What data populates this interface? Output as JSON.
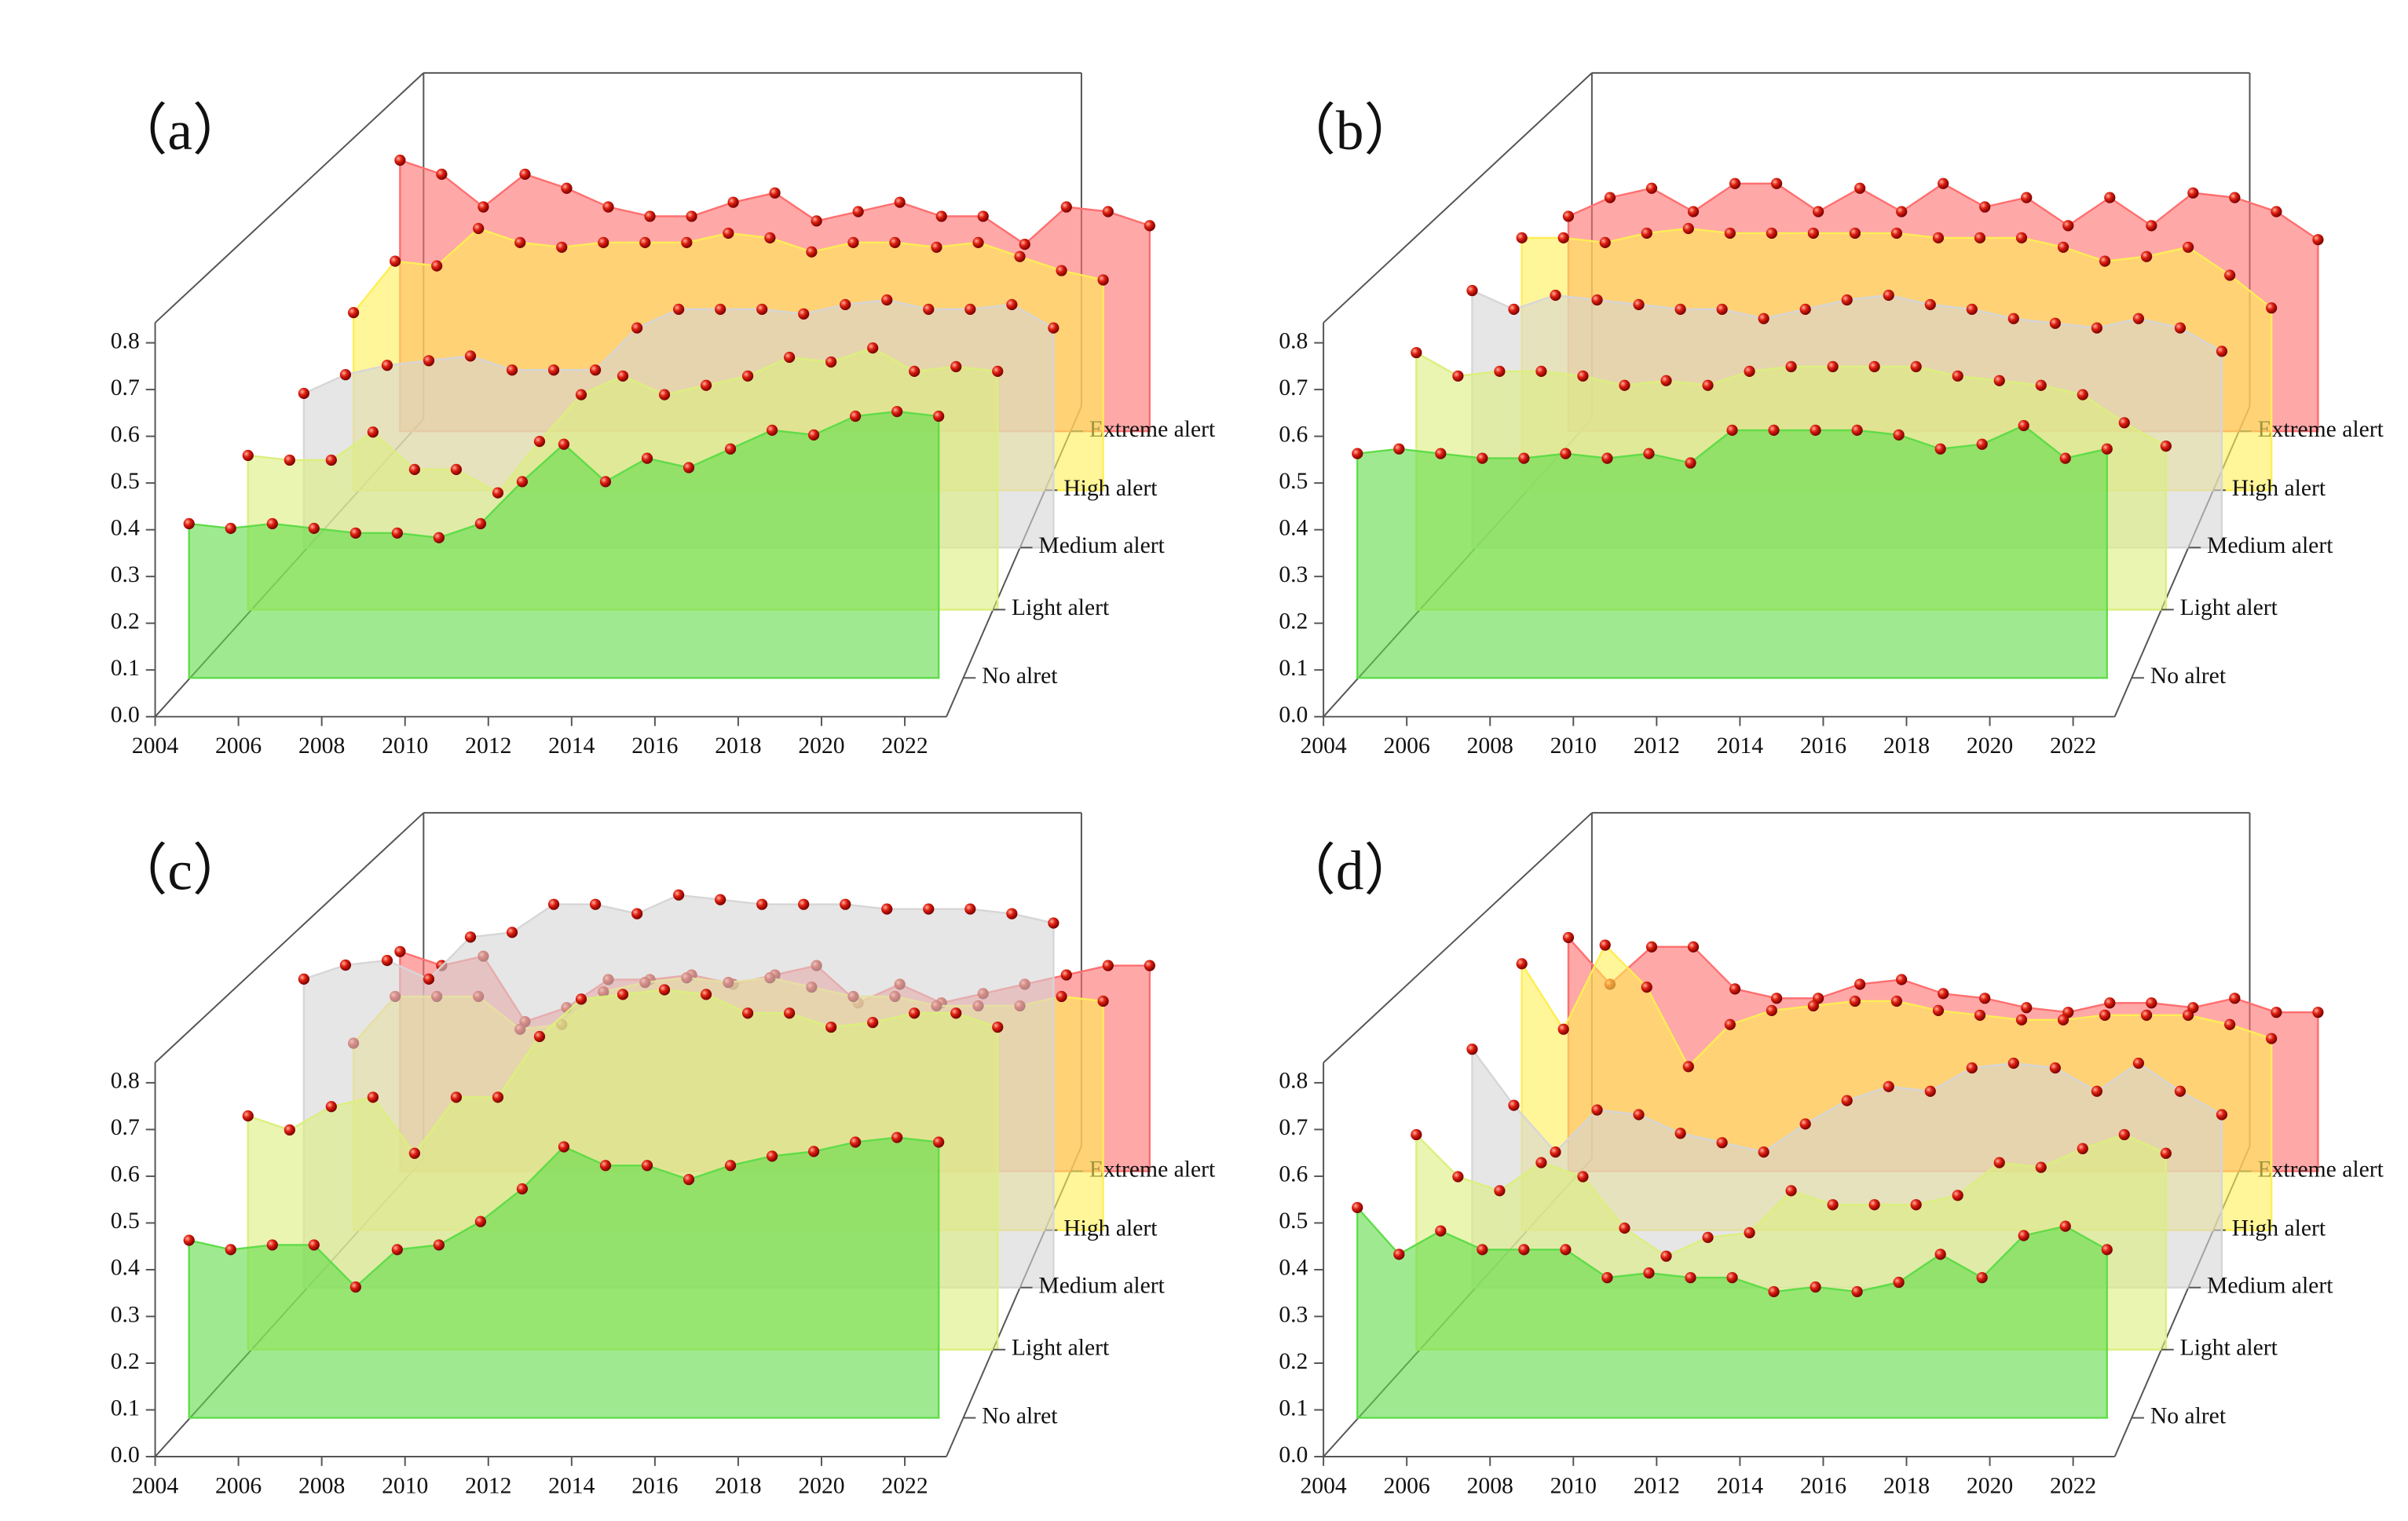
{
  "chart_data": [
    {
      "type": "area",
      "title": "（a）",
      "x": [
        2005,
        2006,
        2007,
        2008,
        2009,
        2010,
        2011,
        2012,
        2013,
        2014,
        2015,
        2016,
        2017,
        2018,
        2019,
        2020,
        2021,
        2022,
        2023
      ],
      "xlim": [
        2004,
        2023
      ],
      "xticks": [
        2004,
        2006,
        2008,
        2010,
        2012,
        2014,
        2016,
        2018,
        2020,
        2022
      ],
      "ylim": [
        0,
        0.8
      ],
      "yticks": [
        {
          "value": 0,
          "label": "0.0"
        },
        {
          "value": 0.1,
          "label": "0.1"
        },
        {
          "value": 0.2,
          "label": "0.2"
        },
        {
          "value": 0.3,
          "label": "0.3"
        },
        {
          "value": 0.4,
          "label": "0.4"
        },
        {
          "value": 0.5,
          "label": "0.5"
        },
        {
          "value": 0.6,
          "label": "0.6"
        },
        {
          "value": 0.7,
          "label": "0.7"
        },
        {
          "value": 0.8,
          "label": "0.8"
        }
      ],
      "series": [
        {
          "name": "No alret",
          "color": "#5fdc48",
          "values": [
            0.33,
            0.32,
            0.33,
            0.32,
            0.31,
            0.31,
            0.3,
            0.33,
            0.42,
            0.5,
            0.42,
            0.47,
            0.45,
            0.49,
            0.53,
            0.52,
            0.56,
            0.57,
            0.56
          ]
        },
        {
          "name": "Light alert",
          "color": "#dcef7e",
          "values": [
            0.33,
            0.32,
            0.32,
            0.38,
            0.3,
            0.3,
            0.25,
            0.36,
            0.46,
            0.5,
            0.46,
            0.48,
            0.5,
            0.54,
            0.53,
            0.56,
            0.51,
            0.52,
            0.51
          ]
        },
        {
          "name": "Medium alert",
          "color": "#d6d6d6",
          "values": [
            0.33,
            0.37,
            0.39,
            0.4,
            0.41,
            0.38,
            0.38,
            0.38,
            0.47,
            0.51,
            0.51,
            0.51,
            0.5,
            0.52,
            0.53,
            0.51,
            0.51,
            0.52,
            0.47
          ]
        },
        {
          "name": "High alert",
          "color": "#ffee55",
          "values": [
            0.38,
            0.49,
            0.48,
            0.56,
            0.53,
            0.52,
            0.53,
            0.53,
            0.53,
            0.55,
            0.54,
            0.51,
            0.53,
            0.53,
            0.52,
            0.53,
            0.5,
            0.47,
            0.45
          ]
        },
        {
          "name": "Extreme alert",
          "color": "#ff6e6e",
          "values": [
            0.58,
            0.55,
            0.48,
            0.55,
            0.52,
            0.48,
            0.46,
            0.46,
            0.49,
            0.51,
            0.45,
            0.47,
            0.49,
            0.46,
            0.46,
            0.4,
            0.48,
            0.47,
            0.44
          ]
        }
      ]
    },
    {
      "type": "area",
      "title": "（b）",
      "x": [
        2005,
        2006,
        2007,
        2008,
        2009,
        2010,
        2011,
        2012,
        2013,
        2014,
        2015,
        2016,
        2017,
        2018,
        2019,
        2020,
        2021,
        2022,
        2023
      ],
      "xlim": [
        2004,
        2023
      ],
      "xticks": [
        2004,
        2006,
        2008,
        2010,
        2012,
        2014,
        2016,
        2018,
        2020,
        2022
      ],
      "ylim": [
        0,
        0.8
      ],
      "yticks": [
        {
          "value": 0,
          "label": "0.0"
        },
        {
          "value": 0.1,
          "label": "0.1"
        },
        {
          "value": 0.2,
          "label": "0.2"
        },
        {
          "value": 0.3,
          "label": "0.3"
        },
        {
          "value": 0.4,
          "label": "0.4"
        },
        {
          "value": 0.5,
          "label": "0.5"
        },
        {
          "value": 0.6,
          "label": "0.6"
        },
        {
          "value": 0.7,
          "label": "0.7"
        },
        {
          "value": 0.8,
          "label": "0.8"
        }
      ],
      "series": [
        {
          "name": "No alret",
          "color": "#5fdc48",
          "values": [
            0.48,
            0.49,
            0.48,
            0.47,
            0.47,
            0.48,
            0.47,
            0.48,
            0.46,
            0.53,
            0.53,
            0.53,
            0.53,
            0.52,
            0.49,
            0.5,
            0.54,
            0.47,
            0.49
          ]
        },
        {
          "name": "Light alert",
          "color": "#dcef7e",
          "values": [
            0.55,
            0.5,
            0.51,
            0.51,
            0.5,
            0.48,
            0.49,
            0.48,
            0.51,
            0.52,
            0.52,
            0.52,
            0.52,
            0.5,
            0.49,
            0.48,
            0.46,
            0.4,
            0.35
          ]
        },
        {
          "name": "Medium alert",
          "color": "#d6d6d6",
          "values": [
            0.55,
            0.51,
            0.54,
            0.53,
            0.52,
            0.51,
            0.51,
            0.49,
            0.51,
            0.53,
            0.54,
            0.52,
            0.51,
            0.49,
            0.48,
            0.47,
            0.49,
            0.47,
            0.42
          ]
        },
        {
          "name": "High alert",
          "color": "#ffee55",
          "values": [
            0.54,
            0.54,
            0.53,
            0.55,
            0.56,
            0.55,
            0.55,
            0.55,
            0.55,
            0.55,
            0.54,
            0.54,
            0.54,
            0.52,
            0.49,
            0.5,
            0.52,
            0.46,
            0.39
          ]
        },
        {
          "name": "Extreme alert",
          "color": "#ff6e6e",
          "values": [
            0.46,
            0.5,
            0.52,
            0.47,
            0.53,
            0.53,
            0.47,
            0.52,
            0.47,
            0.53,
            0.48,
            0.5,
            0.44,
            0.5,
            0.44,
            0.51,
            0.5,
            0.47,
            0.41
          ]
        }
      ]
    },
    {
      "type": "area",
      "title": "（c）",
      "x": [
        2005,
        2006,
        2007,
        2008,
        2009,
        2010,
        2011,
        2012,
        2013,
        2014,
        2015,
        2016,
        2017,
        2018,
        2019,
        2020,
        2021,
        2022,
        2023
      ],
      "xlim": [
        2004,
        2023
      ],
      "xticks": [
        2004,
        2006,
        2008,
        2010,
        2012,
        2014,
        2016,
        2018,
        2020,
        2022
      ],
      "ylim": [
        0,
        0.8
      ],
      "yticks": [
        {
          "value": 0,
          "label": "0.0"
        },
        {
          "value": 0.1,
          "label": "0.1"
        },
        {
          "value": 0.2,
          "label": "0.2"
        },
        {
          "value": 0.3,
          "label": "0.3"
        },
        {
          "value": 0.4,
          "label": "0.4"
        },
        {
          "value": 0.5,
          "label": "0.5"
        },
        {
          "value": 0.6,
          "label": "0.6"
        },
        {
          "value": 0.7,
          "label": "0.7"
        },
        {
          "value": 0.8,
          "label": "0.8"
        }
      ],
      "series": [
        {
          "name": "No alret",
          "color": "#5fdc48",
          "values": [
            0.38,
            0.36,
            0.37,
            0.37,
            0.28,
            0.36,
            0.37,
            0.42,
            0.49,
            0.58,
            0.54,
            0.54,
            0.51,
            0.54,
            0.56,
            0.57,
            0.59,
            0.6,
            0.59
          ]
        },
        {
          "name": "Light alert",
          "color": "#dcef7e",
          "values": [
            0.5,
            0.47,
            0.52,
            0.54,
            0.42,
            0.54,
            0.54,
            0.67,
            0.75,
            0.76,
            0.77,
            0.76,
            0.72,
            0.72,
            0.69,
            0.7,
            0.72,
            0.72,
            0.69
          ]
        },
        {
          "name": "Medium alert",
          "color": "#d6d6d6",
          "values": [
            0.66,
            0.69,
            0.7,
            0.66,
            0.75,
            0.76,
            0.82,
            0.82,
            0.8,
            0.84,
            0.83,
            0.82,
            0.82,
            0.82,
            0.81,
            0.81,
            0.81,
            0.8,
            0.78
          ]
        },
        {
          "name": "High alert",
          "color": "#ffee55",
          "values": [
            0.4,
            0.5,
            0.5,
            0.5,
            0.43,
            0.44,
            0.51,
            0.53,
            0.54,
            0.53,
            0.54,
            0.52,
            0.5,
            0.5,
            0.48,
            0.48,
            0.48,
            0.5,
            0.49
          ]
        },
        {
          "name": "Extreme alert",
          "color": "#ff6e6e",
          "values": [
            0.47,
            0.44,
            0.46,
            0.32,
            0.35,
            0.41,
            0.41,
            0.42,
            0.4,
            0.42,
            0.44,
            0.36,
            0.4,
            0.36,
            0.38,
            0.4,
            0.42,
            0.44,
            0.44
          ]
        }
      ]
    },
    {
      "type": "area",
      "title": "（d）",
      "x": [
        2005,
        2006,
        2007,
        2008,
        2009,
        2010,
        2011,
        2012,
        2013,
        2014,
        2015,
        2016,
        2017,
        2018,
        2019,
        2020,
        2021,
        2022,
        2023
      ],
      "xlim": [
        2004,
        2023
      ],
      "xticks": [
        2004,
        2006,
        2008,
        2010,
        2012,
        2014,
        2016,
        2018,
        2020,
        2022
      ],
      "ylim": [
        0,
        0.8
      ],
      "yticks": [
        {
          "value": 0,
          "label": "0.0"
        },
        {
          "value": 0.1,
          "label": "0.1"
        },
        {
          "value": 0.2,
          "label": "0.2"
        },
        {
          "value": 0.3,
          "label": "0.3"
        },
        {
          "value": 0.4,
          "label": "0.4"
        },
        {
          "value": 0.5,
          "label": "0.5"
        },
        {
          "value": 0.6,
          "label": "0.6"
        },
        {
          "value": 0.7,
          "label": "0.7"
        },
        {
          "value": 0.8,
          "label": "0.8"
        }
      ],
      "series": [
        {
          "name": "No alret",
          "color": "#5fdc48",
          "values": [
            0.45,
            0.35,
            0.4,
            0.36,
            0.36,
            0.36,
            0.3,
            0.31,
            0.3,
            0.3,
            0.27,
            0.28,
            0.27,
            0.29,
            0.35,
            0.3,
            0.39,
            0.41,
            0.36
          ]
        },
        {
          "name": "Light alert",
          "color": "#dcef7e",
          "values": [
            0.46,
            0.37,
            0.34,
            0.4,
            0.37,
            0.26,
            0.2,
            0.24,
            0.25,
            0.34,
            0.31,
            0.31,
            0.31,
            0.33,
            0.4,
            0.39,
            0.43,
            0.46,
            0.42
          ]
        },
        {
          "name": "Medium alert",
          "color": "#d6d6d6",
          "values": [
            0.51,
            0.39,
            0.29,
            0.38,
            0.37,
            0.33,
            0.31,
            0.29,
            0.35,
            0.4,
            0.43,
            0.42,
            0.47,
            0.48,
            0.47,
            0.42,
            0.48,
            0.42,
            0.37
          ]
        },
        {
          "name": "High alert",
          "color": "#ffee55",
          "values": [
            0.57,
            0.43,
            0.61,
            0.52,
            0.35,
            0.44,
            0.47,
            0.48,
            0.49,
            0.49,
            0.47,
            0.46,
            0.45,
            0.45,
            0.46,
            0.46,
            0.46,
            0.44,
            0.41
          ]
        },
        {
          "name": "Extreme alert",
          "color": "#ff6e6e",
          "values": [
            0.5,
            0.4,
            0.48,
            0.48,
            0.39,
            0.37,
            0.37,
            0.4,
            0.41,
            0.38,
            0.37,
            0.35,
            0.34,
            0.36,
            0.36,
            0.35,
            0.37,
            0.34,
            0.34
          ]
        }
      ]
    }
  ]
}
